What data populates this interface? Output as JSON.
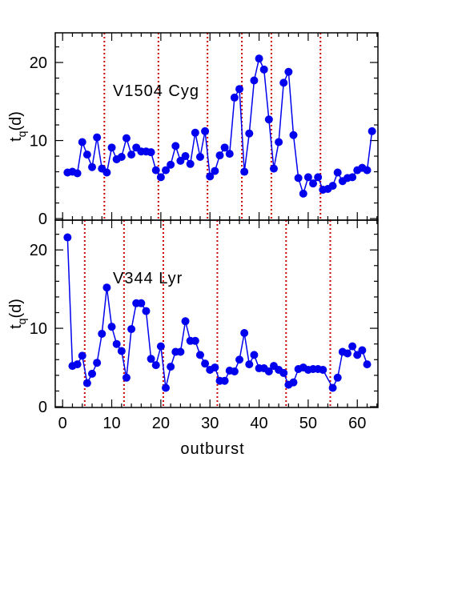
{
  "chart_data": [
    {
      "type": "line",
      "annotation": "V1504 Cyg",
      "color": "#0000ee",
      "vline_color": "#cc0000",
      "ylabel": "t",
      "ylabel_sub": "q",
      "ylabel_rest": "(d)",
      "xlim": [
        -1.5,
        64.2
      ],
      "xticks": [
        0,
        10,
        20,
        30,
        40,
        50,
        60
      ],
      "xminorticks": [
        2,
        4,
        6,
        8,
        12,
        14,
        16,
        18,
        22,
        24,
        26,
        28,
        32,
        34,
        36,
        38,
        42,
        44,
        46,
        48,
        52,
        54,
        56,
        58,
        62,
        64
      ],
      "xtick_labels": false,
      "ylim": [
        -0.2,
        23.8
      ],
      "yticks": [
        0,
        10,
        20
      ],
      "yminorticks": [
        2,
        4,
        6,
        8,
        12,
        14,
        16,
        18,
        22
      ],
      "x": [
        1,
        2,
        3,
        4,
        5,
        6,
        7,
        8,
        9,
        10,
        11,
        12,
        13,
        14,
        15,
        16,
        17,
        18,
        19,
        20,
        21,
        22,
        23,
        24,
        25,
        26,
        27,
        28,
        29,
        30,
        31,
        32,
        33,
        34,
        35,
        36,
        37,
        38,
        39,
        40,
        41,
        42,
        43,
        44,
        45,
        46,
        47,
        48,
        49,
        50,
        51,
        52,
        53,
        54,
        55,
        56,
        57,
        58,
        59,
        60,
        61,
        62,
        63
      ],
      "values": [
        5.9,
        6.0,
        5.8,
        9.8,
        8.2,
        6.6,
        10.4,
        6.4,
        5.9,
        9.1,
        7.6,
        7.9,
        10.3,
        8.2,
        9.1,
        8.6,
        8.6,
        8.5,
        6.2,
        5.3,
        6.2,
        6.9,
        9.3,
        7.4,
        8.0,
        7.0,
        11.0,
        7.9,
        11.2,
        5.4,
        6.1,
        8.1,
        9.1,
        8.3,
        15.5,
        16.6,
        6.0,
        10.9,
        17.7,
        20.5,
        19.1,
        12.7,
        6.4,
        9.8,
        17.4,
        18.8,
        10.7,
        5.2,
        3.2,
        5.3,
        4.5,
        5.3,
        3.7,
        3.8,
        4.2,
        5.9,
        4.8,
        5.2,
        5.3,
        6.2,
        6.5,
        6.2,
        11.2
      ],
      "vlines": [
        8.5,
        19.5,
        29.5,
        36.5,
        42.5,
        52.5
      ]
    },
    {
      "type": "line",
      "annotation": "V344 Lyr",
      "color": "#0000ee",
      "vline_color": "#cc0000",
      "ylabel": "t",
      "ylabel_sub": "q",
      "ylabel_rest": "(d)",
      "xlabel": "outburst",
      "xlim": [
        -1.5,
        64.2
      ],
      "xticks": [
        0,
        10,
        20,
        30,
        40,
        50,
        60
      ],
      "xminorticks": [
        2,
        4,
        6,
        8,
        12,
        14,
        16,
        18,
        22,
        24,
        26,
        28,
        32,
        34,
        36,
        38,
        42,
        44,
        46,
        48,
        52,
        54,
        56,
        58,
        62,
        64
      ],
      "xtick_labels": true,
      "ylim": [
        -0.1,
        23.8
      ],
      "yticks": [
        0,
        10,
        20
      ],
      "yminorticks": [
        2,
        4,
        6,
        8,
        12,
        14,
        16,
        18,
        22
      ],
      "x": [
        1,
        2,
        3,
        4,
        5,
        6,
        7,
        8,
        9,
        10,
        11,
        12,
        13,
        14,
        15,
        16,
        17,
        18,
        19,
        20,
        21,
        22,
        23,
        24,
        25,
        26,
        27,
        28,
        29,
        30,
        31,
        32,
        33,
        34,
        35,
        36,
        37,
        38,
        39,
        40,
        41,
        42,
        43,
        44,
        45,
        46,
        47,
        48,
        49,
        50,
        51,
        52,
        53,
        55,
        56,
        57,
        58,
        59,
        60,
        61,
        62
      ],
      "values": [
        21.6,
        5.2,
        5.4,
        6.5,
        3.0,
        4.2,
        5.6,
        9.3,
        15.2,
        10.2,
        8.0,
        7.1,
        3.7,
        9.9,
        13.2,
        13.2,
        12.2,
        6.1,
        5.3,
        7.7,
        2.4,
        5.1,
        7.0,
        7.0,
        10.9,
        8.4,
        8.4,
        6.6,
        5.5,
        4.7,
        5.0,
        3.3,
        3.3,
        4.6,
        4.5,
        6.0,
        9.4,
        5.4,
        6.6,
        4.9,
        4.9,
        4.5,
        5.2,
        4.7,
        4.3,
        2.8,
        3.1,
        4.8,
        5.0,
        4.7,
        4.8,
        4.8,
        4.7,
        2.4,
        3.7,
        7.0,
        6.8,
        7.7,
        6.6,
        7.2,
        5.4
      ],
      "vlines": [
        4.5,
        12.5,
        20.5,
        31.5,
        45.5,
        54.5
      ]
    }
  ]
}
